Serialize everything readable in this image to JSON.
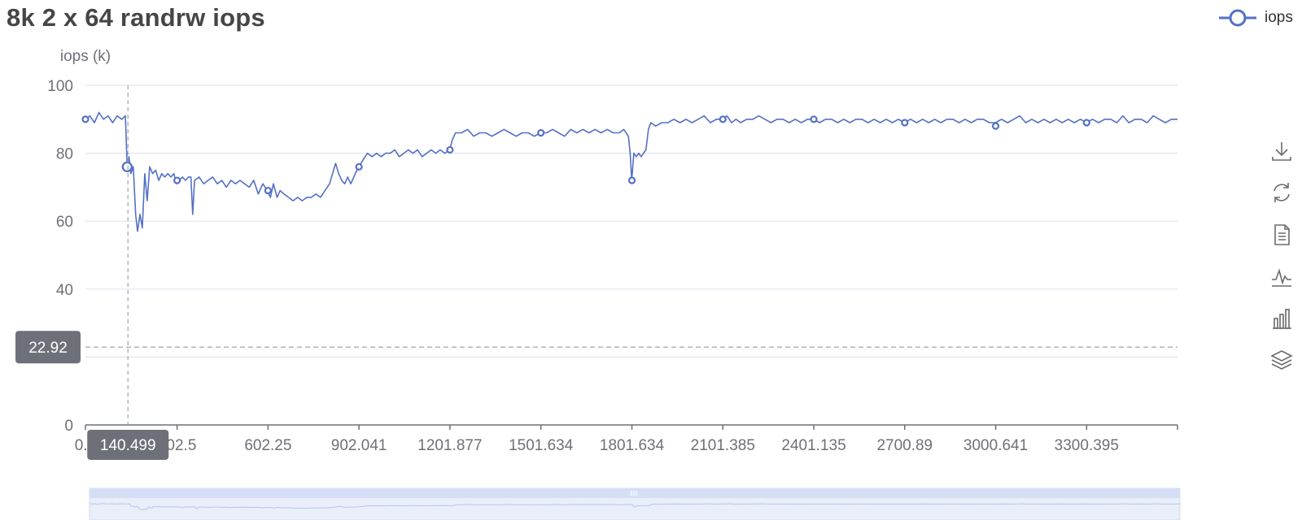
{
  "chart_data": {
    "type": "line",
    "title": "8k 2 x 64 randrw iops",
    "ylabel": "iops (k)",
    "ylim": [
      0,
      100
    ],
    "yticks": [
      "0",
      "20",
      "40",
      "60",
      "80",
      "100"
    ],
    "xlim": [
      0.4,
      3600
    ],
    "xtick_labels": [
      "0.4",
      "302.5",
      "602.25",
      "902.041",
      "1201.877",
      "1501.634",
      "1801.634",
      "2101.385",
      "2401.135",
      "2700.89",
      "3000.641",
      "3300.395"
    ],
    "series": [
      {
        "name": "iops",
        "color": "#5470c6",
        "points": [
          [
            0.4,
            90
          ],
          [
            15,
            91
          ],
          [
            30,
            89
          ],
          [
            45,
            92
          ],
          [
            60,
            90
          ],
          [
            75,
            91
          ],
          [
            90,
            89
          ],
          [
            105,
            91
          ],
          [
            120,
            90
          ],
          [
            132,
            91
          ],
          [
            138,
            76
          ],
          [
            144,
            79
          ],
          [
            150,
            74
          ],
          [
            158,
            76
          ],
          [
            166,
            62
          ],
          [
            172,
            57
          ],
          [
            180,
            62
          ],
          [
            188,
            58
          ],
          [
            196,
            74
          ],
          [
            204,
            66
          ],
          [
            212,
            76
          ],
          [
            222,
            74
          ],
          [
            232,
            75
          ],
          [
            242,
            72
          ],
          [
            252,
            74
          ],
          [
            262,
            73
          ],
          [
            272,
            74
          ],
          [
            282,
            73
          ],
          [
            292,
            74
          ],
          [
            300,
            71
          ],
          [
            310,
            72
          ],
          [
            320,
            73
          ],
          [
            330,
            72
          ],
          [
            340,
            73
          ],
          [
            348,
            73
          ],
          [
            354,
            62
          ],
          [
            360,
            72
          ],
          [
            375,
            73
          ],
          [
            390,
            71
          ],
          [
            405,
            72
          ],
          [
            420,
            73
          ],
          [
            435,
            71
          ],
          [
            450,
            72
          ],
          [
            465,
            70
          ],
          [
            480,
            72
          ],
          [
            495,
            71
          ],
          [
            510,
            72
          ],
          [
            525,
            71
          ],
          [
            540,
            70
          ],
          [
            555,
            72
          ],
          [
            570,
            68
          ],
          [
            585,
            71
          ],
          [
            600,
            69
          ],
          [
            610,
            67
          ],
          [
            620,
            71
          ],
          [
            632,
            67
          ],
          [
            642,
            69
          ],
          [
            655,
            68
          ],
          [
            670,
            67
          ],
          [
            685,
            66
          ],
          [
            700,
            67
          ],
          [
            715,
            66
          ],
          [
            730,
            67
          ],
          [
            745,
            67
          ],
          [
            760,
            68
          ],
          [
            775,
            67
          ],
          [
            790,
            69
          ],
          [
            805,
            71
          ],
          [
            815,
            74
          ],
          [
            825,
            77
          ],
          [
            835,
            74
          ],
          [
            845,
            72
          ],
          [
            855,
            71
          ],
          [
            865,
            73
          ],
          [
            875,
            71
          ],
          [
            885,
            73
          ],
          [
            895,
            75
          ],
          [
            902,
            76
          ],
          [
            915,
            78
          ],
          [
            930,
            80
          ],
          [
            945,
            79
          ],
          [
            960,
            80
          ],
          [
            975,
            79
          ],
          [
            990,
            80
          ],
          [
            1005,
            80
          ],
          [
            1020,
            81
          ],
          [
            1035,
            79
          ],
          [
            1050,
            80
          ],
          [
            1065,
            81
          ],
          [
            1080,
            80
          ],
          [
            1095,
            81
          ],
          [
            1110,
            79
          ],
          [
            1125,
            80
          ],
          [
            1140,
            81
          ],
          [
            1155,
            80
          ],
          [
            1170,
            81
          ],
          [
            1185,
            80
          ],
          [
            1201,
            81
          ],
          [
            1210,
            84
          ],
          [
            1220,
            86
          ],
          [
            1240,
            86
          ],
          [
            1260,
            87
          ],
          [
            1280,
            85
          ],
          [
            1300,
            86
          ],
          [
            1320,
            86
          ],
          [
            1340,
            85
          ],
          [
            1360,
            86
          ],
          [
            1380,
            87
          ],
          [
            1400,
            86
          ],
          [
            1420,
            85
          ],
          [
            1440,
            86
          ],
          [
            1460,
            86
          ],
          [
            1480,
            85
          ],
          [
            1501,
            86
          ],
          [
            1520,
            86
          ],
          [
            1540,
            87
          ],
          [
            1560,
            86
          ],
          [
            1580,
            85
          ],
          [
            1600,
            87
          ],
          [
            1620,
            86
          ],
          [
            1640,
            87
          ],
          [
            1660,
            86
          ],
          [
            1680,
            87
          ],
          [
            1700,
            86
          ],
          [
            1720,
            87
          ],
          [
            1740,
            86
          ],
          [
            1760,
            86
          ],
          [
            1775,
            87
          ],
          [
            1790,
            85
          ],
          [
            1796,
            80
          ],
          [
            1801,
            72
          ],
          [
            1808,
            80
          ],
          [
            1816,
            79
          ],
          [
            1824,
            80
          ],
          [
            1832,
            79
          ],
          [
            1840,
            80
          ],
          [
            1848,
            81
          ],
          [
            1856,
            87
          ],
          [
            1864,
            89
          ],
          [
            1880,
            88
          ],
          [
            1900,
            89
          ],
          [
            1920,
            89
          ],
          [
            1940,
            90
          ],
          [
            1960,
            89
          ],
          [
            1980,
            90
          ],
          [
            2000,
            89
          ],
          [
            2020,
            90
          ],
          [
            2040,
            91
          ],
          [
            2060,
            89
          ],
          [
            2080,
            90
          ],
          [
            2101,
            90
          ],
          [
            2115,
            91
          ],
          [
            2130,
            89
          ],
          [
            2145,
            90
          ],
          [
            2160,
            89
          ],
          [
            2180,
            90
          ],
          [
            2200,
            90
          ],
          [
            2220,
            91
          ],
          [
            2240,
            90
          ],
          [
            2260,
            89
          ],
          [
            2280,
            90
          ],
          [
            2300,
            90
          ],
          [
            2320,
            89
          ],
          [
            2340,
            90
          ],
          [
            2360,
            89
          ],
          [
            2380,
            90
          ],
          [
            2401,
            90
          ],
          [
            2420,
            89
          ],
          [
            2440,
            90
          ],
          [
            2460,
            90
          ],
          [
            2480,
            89
          ],
          [
            2500,
            90
          ],
          [
            2520,
            89
          ],
          [
            2540,
            90
          ],
          [
            2560,
            90
          ],
          [
            2580,
            89
          ],
          [
            2600,
            90
          ],
          [
            2620,
            89
          ],
          [
            2640,
            90
          ],
          [
            2660,
            89
          ],
          [
            2680,
            90
          ],
          [
            2700,
            89
          ],
          [
            2720,
            90
          ],
          [
            2740,
            89
          ],
          [
            2760,
            90
          ],
          [
            2780,
            89
          ],
          [
            2800,
            90
          ],
          [
            2820,
            89
          ],
          [
            2840,
            90
          ],
          [
            2860,
            90
          ],
          [
            2880,
            89
          ],
          [
            2900,
            90
          ],
          [
            2920,
            89
          ],
          [
            2940,
            90
          ],
          [
            2960,
            90
          ],
          [
            2980,
            89
          ],
          [
            3000,
            89
          ],
          [
            3020,
            90
          ],
          [
            3040,
            89
          ],
          [
            3060,
            90
          ],
          [
            3080,
            91
          ],
          [
            3100,
            89
          ],
          [
            3120,
            90
          ],
          [
            3140,
            89
          ],
          [
            3160,
            90
          ],
          [
            3180,
            89
          ],
          [
            3200,
            90
          ],
          [
            3220,
            89
          ],
          [
            3240,
            90
          ],
          [
            3260,
            89
          ],
          [
            3280,
            90
          ],
          [
            3300,
            89
          ],
          [
            3320,
            90
          ],
          [
            3340,
            89
          ],
          [
            3360,
            90
          ],
          [
            3380,
            90
          ],
          [
            3400,
            89
          ],
          [
            3420,
            91
          ],
          [
            3440,
            89
          ],
          [
            3460,
            90
          ],
          [
            3480,
            90
          ],
          [
            3500,
            89
          ],
          [
            3520,
            91
          ],
          [
            3540,
            90
          ],
          [
            3560,
            89
          ],
          [
            3580,
            90
          ],
          [
            3600,
            90
          ]
        ],
        "markers": [
          [
            0.4,
            90
          ],
          [
            138,
            76
          ],
          [
            302.5,
            72
          ],
          [
            602.25,
            69
          ],
          [
            902.041,
            76
          ],
          [
            1201.877,
            81
          ],
          [
            1501.634,
            86
          ],
          [
            1801.634,
            72
          ],
          [
            2101.385,
            90
          ],
          [
            2401.135,
            90
          ],
          [
            2700.89,
            89
          ],
          [
            3000.641,
            88
          ],
          [
            3300.395,
            89
          ]
        ]
      }
    ]
  },
  "tooltip": {
    "x_value": "140.499",
    "y_value": "22.92"
  },
  "toolbox": [
    "download-icon",
    "refresh-icon",
    "data-view-icon",
    "line-chart-icon",
    "bar-chart-icon",
    "stack-icon"
  ]
}
